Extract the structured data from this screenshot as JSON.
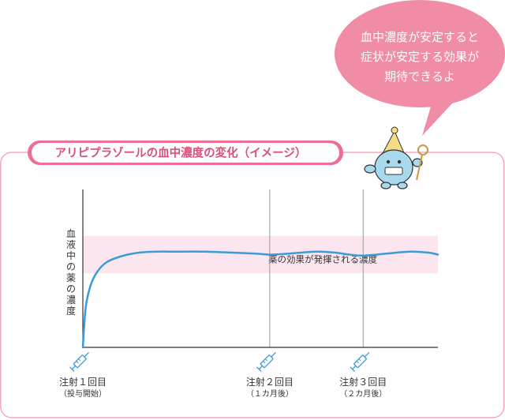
{
  "bubble": {
    "lines": [
      "血中濃度が安定すると",
      "症状が安定する効果が",
      "期待できるよ"
    ]
  },
  "panel": {
    "title": "アリピプラゾールの血中濃度の変化（イメージ）"
  },
  "colors": {
    "frame": "#f4a9bb",
    "title_pill": "#ec6f93",
    "title_text": "#d94f7b",
    "bubble": "#f08ca5",
    "band": "#fbe6ef",
    "curve": "#3a9bd9",
    "axis": "#333333",
    "grid": "#9a9a9a",
    "text": "#333333",
    "mascot": "#a9d9ec",
    "mascot_hat": "#f5dc86",
    "syringe": "#3a9bd9"
  },
  "icons": {
    "syringe": "syringe-icon",
    "mascot": "mascot-character"
  },
  "chart_data": {
    "type": "line",
    "title": "アリピプラゾールの血中濃度の変化（イメージ）",
    "ylabel": "血液中の薬の濃度",
    "band_label": "薬の効果が発揮される濃度",
    "y_axis_ticks": false,
    "grid": "vertical lines at each injection",
    "series": [
      {
        "x": [
          0,
          0.03,
          0.08,
          0.15,
          0.25,
          0.4,
          0.6,
          0.8,
          1.0,
          1.3,
          1.6,
          1.85,
          2.0,
          2.2,
          2.5,
          2.7,
          2.85,
          3.0,
          3.25,
          3.5,
          3.7,
          3.8
        ],
        "values": [
          0,
          40,
          62,
          76,
          86,
          92,
          96,
          97,
          97,
          97,
          96,
          95,
          94,
          95,
          97,
          96,
          94,
          93,
          95,
          97,
          96,
          94
        ]
      }
    ],
    "band_range": [
      75,
      113
    ],
    "y_range": [
      0,
      160
    ],
    "x_range": [
      0,
      3.8
    ],
    "events": [
      {
        "x": 0,
        "label": "注射１回目",
        "sub": "（投与開始）"
      },
      {
        "x": 2,
        "label": "注射２回目",
        "sub": "（１カ月後）"
      },
      {
        "x": 3,
        "label": "注射３回目",
        "sub": "（２カ月後）"
      }
    ]
  }
}
